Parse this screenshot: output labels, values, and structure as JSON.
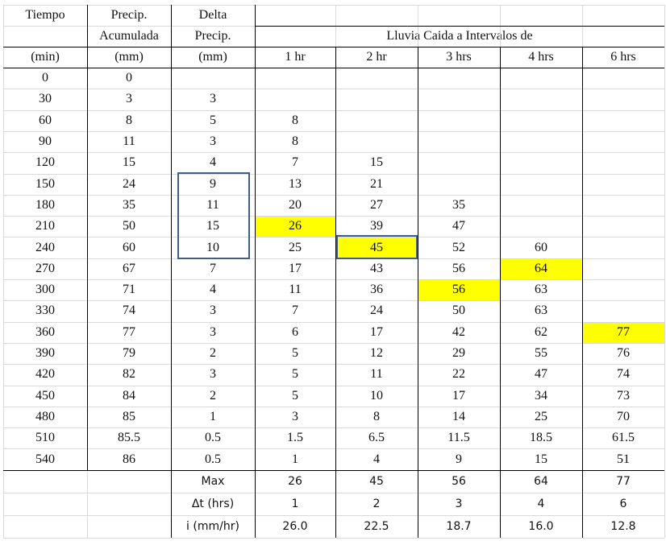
{
  "headers": {
    "tiempo": "Tiempo",
    "precip": "Precip.",
    "acumulada": "Acumulada",
    "delta": "Delta",
    "delta_precip": "Precip.",
    "intervals_title": "Lluvia Caida a Intervalos de",
    "units": [
      "(min)",
      "(mm)",
      "(mm)",
      "1 hr",
      "2 hr",
      "3 hrs",
      "4 hrs",
      "6 hrs"
    ]
  },
  "rows": [
    [
      "0",
      "0",
      "",
      "",
      "",
      "",
      "",
      ""
    ],
    [
      "30",
      "3",
      "3",
      "",
      "",
      "",
      "",
      ""
    ],
    [
      "60",
      "8",
      "5",
      "8",
      "",
      "",
      "",
      ""
    ],
    [
      "90",
      "11",
      "3",
      "8",
      "",
      "",
      "",
      ""
    ],
    [
      "120",
      "15",
      "4",
      "7",
      "15",
      "",
      "",
      ""
    ],
    [
      "150",
      "24",
      "9",
      "13",
      "21",
      "",
      "",
      ""
    ],
    [
      "180",
      "35",
      "11",
      "20",
      "27",
      "35",
      "",
      ""
    ],
    [
      "210",
      "50",
      "15",
      "26",
      "39",
      "47",
      "",
      ""
    ],
    [
      "240",
      "60",
      "10",
      "25",
      "45",
      "52",
      "60",
      ""
    ],
    [
      "270",
      "67",
      "7",
      "17",
      "43",
      "56",
      "64",
      ""
    ],
    [
      "300",
      "71",
      "4",
      "11",
      "36",
      "56",
      "63",
      ""
    ],
    [
      "330",
      "74",
      "3",
      "7",
      "24",
      "50",
      "63",
      ""
    ],
    [
      "360",
      "77",
      "3",
      "6",
      "17",
      "42",
      "62",
      "77"
    ],
    [
      "390",
      "79",
      "2",
      "5",
      "12",
      "29",
      "55",
      "76"
    ],
    [
      "420",
      "82",
      "3",
      "5",
      "11",
      "22",
      "47",
      "74"
    ],
    [
      "450",
      "84",
      "2",
      "5",
      "10",
      "17",
      "34",
      "73"
    ],
    [
      "480",
      "85",
      "1",
      "3",
      "8",
      "14",
      "25",
      "70"
    ],
    [
      "510",
      "85.5",
      "0.5",
      "1.5",
      "6.5",
      "11.5",
      "18.5",
      "61.5"
    ],
    [
      "540",
      "86",
      "0.5",
      "1",
      "4",
      "9",
      "15",
      "51"
    ]
  ],
  "highlight_color": "#ffff00",
  "box_color": "#3f5f86",
  "highlights": [
    {
      "row": 7,
      "col": 3
    },
    {
      "row": 8,
      "col": 4
    },
    {
      "row": 10,
      "col": 5
    },
    {
      "row": 9,
      "col": 6
    },
    {
      "row": 12,
      "col": 7
    }
  ],
  "boxes": [
    {
      "label": "delta-window-box",
      "row_start": 5,
      "row_end": 8,
      "col": 2
    },
    {
      "label": "max-2hr-box",
      "row_start": 8,
      "row_end": 8,
      "col": 4
    }
  ],
  "summary": [
    {
      "label": "Max",
      "values": [
        "26",
        "45",
        "56",
        "64",
        "77"
      ]
    },
    {
      "label": "Δt (hrs)",
      "values": [
        "1",
        "2",
        "3",
        "4",
        "6"
      ]
    },
    {
      "label": "i (mm/hr)",
      "values": [
        "26.0",
        "22.5",
        "18.7",
        "16.0",
        "12.8"
      ]
    }
  ]
}
